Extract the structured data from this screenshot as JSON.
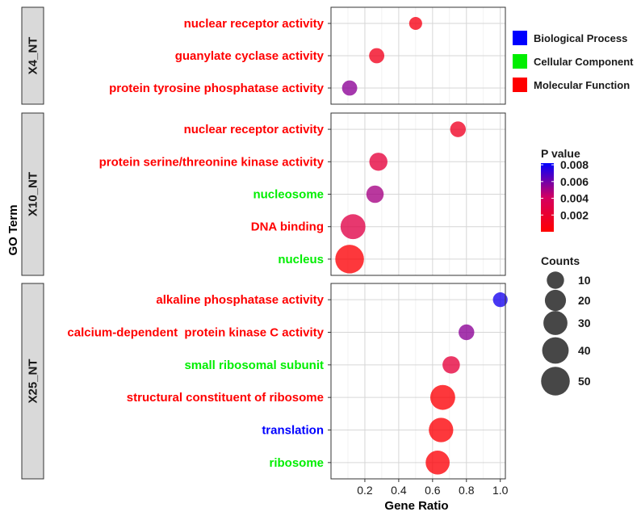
{
  "chart_data": {
    "type": "scatter",
    "title": "",
    "xlabel": "Gene Ratio",
    "ylabel": "GO Term",
    "xlim": [
      0,
      1.03
    ],
    "xticks": [
      0.2,
      0.4,
      0.6,
      0.8,
      1.0
    ],
    "xtick_labels": [
      "0.2",
      "0.4",
      "0.6",
      "0.8",
      "1.0"
    ],
    "grid": true,
    "category_colors": {
      "Biological Process": "#0000ff",
      "Cellular Component": "#00ee00",
      "Molecular Function": "#ff0000"
    },
    "panels": [
      {
        "name": "X4_NT",
        "terms": [
          {
            "label": "nuclear receptor activity",
            "category": "Molecular Function",
            "gene_ratio": 0.5,
            "count": 5,
            "p_value": 0.0008
          },
          {
            "label": "guanylate cyclase activity",
            "category": "Molecular Function",
            "gene_ratio": 0.27,
            "count": 9,
            "p_value": 0.0012
          },
          {
            "label": "protein tyrosine phosphatase activity",
            "category": "Molecular Function",
            "gene_ratio": 0.11,
            "count": 9,
            "p_value": 0.0055
          }
        ]
      },
      {
        "name": "X10_NT",
        "terms": [
          {
            "label": "nuclear receptor activity",
            "category": "Molecular Function",
            "gene_ratio": 0.75,
            "count": 10,
            "p_value": 0.0015
          },
          {
            "label": "protein serine/threonine kinase activity",
            "category": "Molecular Function",
            "gene_ratio": 0.28,
            "count": 16,
            "p_value": 0.0025
          },
          {
            "label": "nucleosome",
            "category": "Cellular Component",
            "gene_ratio": 0.26,
            "count": 14,
            "p_value": 0.005
          },
          {
            "label": "DNA binding",
            "category": "Molecular Function",
            "gene_ratio": 0.13,
            "count": 40,
            "p_value": 0.003
          },
          {
            "label": "nucleus",
            "category": "Cellular Component",
            "gene_ratio": 0.11,
            "count": 58,
            "p_value": 0.0002
          }
        ]
      },
      {
        "name": "X25_NT",
        "terms": [
          {
            "label": "alkaline phosphatase activity",
            "category": "Molecular Function",
            "gene_ratio": 1.0,
            "count": 8,
            "p_value": 0.0078
          },
          {
            "label": "calcium-dependent  protein kinase C activity",
            "category": "Molecular Function",
            "gene_ratio": 0.8,
            "count": 10,
            "p_value": 0.0055
          },
          {
            "label": "small ribosomal subunit",
            "category": "Cellular Component",
            "gene_ratio": 0.71,
            "count": 14,
            "p_value": 0.0025
          },
          {
            "label": "structural constituent of ribosome",
            "category": "Molecular Function",
            "gene_ratio": 0.66,
            "count": 40,
            "p_value": 0.0002
          },
          {
            "label": "translation",
            "category": "Biological Process",
            "gene_ratio": 0.65,
            "count": 38,
            "p_value": 0.0002
          },
          {
            "label": "ribosome",
            "category": "Cellular Component",
            "gene_ratio": 0.63,
            "count": 36,
            "p_value": 0.0003
          }
        ]
      }
    ],
    "legend_category": {
      "items": [
        "Biological Process",
        "Cellular Component",
        "Molecular Function"
      ],
      "colors": [
        "#0000ff",
        "#00ee00",
        "#ff0000"
      ],
      "placement": "top-right"
    },
    "legend_pvalue": {
      "title": "P value",
      "ticks": [
        0.008,
        0.006,
        0.004,
        0.002
      ],
      "tick_labels": [
        "0.008",
        "0.006",
        "0.004",
        "0.002"
      ],
      "range": [
        0.0,
        0.0082
      ],
      "color_low": "#ff0000",
      "color_high": "#0000ff",
      "placement": "right"
    },
    "legend_counts": {
      "title": "Counts",
      "values": [
        10,
        20,
        30,
        40,
        50
      ],
      "labels": [
        "10",
        "20",
        "30",
        "40",
        "50"
      ],
      "placement": "bottom-right"
    }
  }
}
